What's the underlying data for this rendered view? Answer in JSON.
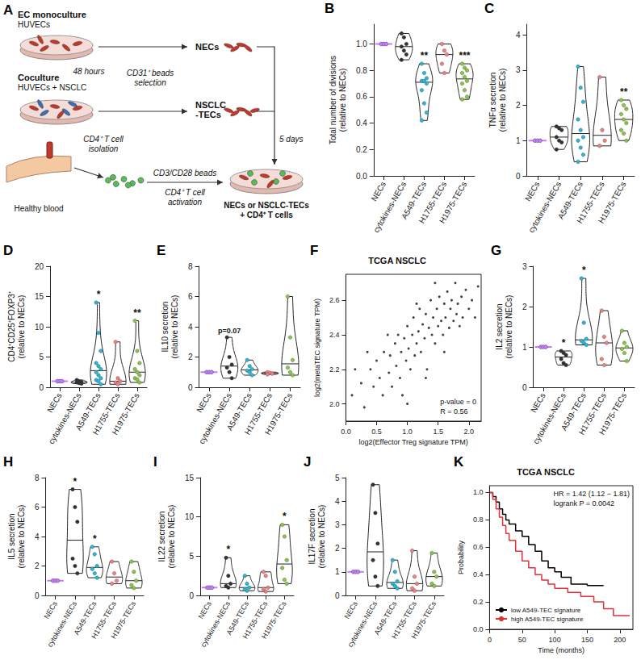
{
  "diagram": {
    "panel": "A",
    "labels": {
      "mono_title": "EC monoculture",
      "mono_sub": "HUVECs",
      "co_title": "Coculture",
      "co_sub": "HUVECs + NSCLC",
      "time1": "48 hours",
      "selection": "CD31⁺ beads selection",
      "nec": "NECs",
      "tec": "NSCLC -TECs",
      "time2": "5 days",
      "blood": "Healthy blood",
      "isolation": "CD4⁺ T cell isolation",
      "beads": "CD3/CD28 beads",
      "activation": "CD4⁺ T cell activation",
      "result": "NECs or NSCLC-TECs + CD4⁺ T cells"
    }
  },
  "chart_data": [
    {
      "panel": "B",
      "type": "violin",
      "ylabel": "Total number of divisions (relative to NECs)",
      "categories": [
        "NECs",
        "cytokines-NECs",
        "A549-TECs",
        "H1755-TECs",
        "H1975-TECs"
      ],
      "colors": [
        "#c77dff",
        "#333333",
        "#29b6d8",
        "#f08080",
        "#8bc34a"
      ],
      "points": [
        [
          1,
          1,
          1,
          1,
          1,
          1
        ],
        [
          1.08,
          1.05,
          1.0,
          0.98,
          0.95,
          0.92,
          0.88
        ],
        [
          0.85,
          0.78,
          0.74,
          0.72,
          0.72,
          0.7,
          0.65,
          0.55,
          0.48,
          0.42
        ],
        [
          1.0,
          0.95,
          0.92,
          0.85,
          0.78
        ],
        [
          0.85,
          0.82,
          0.8,
          0.78,
          0.75,
          0.72,
          0.7,
          0.65,
          0.6,
          0.58
        ]
      ],
      "ylim": [
        0,
        1.15
      ],
      "yticks": [
        {
          "value": 0,
          "label": "0.0"
        },
        {
          "value": 0.2,
          "label": "0.2"
        },
        {
          "value": 0.4,
          "label": "0.4"
        },
        {
          "value": 0.6,
          "label": "0.6"
        },
        {
          "value": 0.8,
          "label": "0.8"
        },
        {
          "value": 1,
          "label": "1.0"
        }
      ],
      "annotations": [
        {
          "category": "A549-TECs",
          "text": "**"
        },
        {
          "category": "H1975-TECs",
          "text": "***"
        }
      ]
    },
    {
      "panel": "C",
      "type": "violin",
      "ylabel": "TNFα secretion (relative to NECs)",
      "categories": [
        "NECs",
        "cytokines-NECs",
        "A549-TECs",
        "H1755-TECs",
        "H1975-TECs"
      ],
      "colors": [
        "#c77dff",
        "#333333",
        "#29b6d8",
        "#f08080",
        "#8bc34a"
      ],
      "points": [
        [
          1,
          1,
          1,
          1,
          1,
          1
        ],
        [
          1.4,
          1.35,
          1.3,
          1.1,
          1.0,
          0.95,
          0.75
        ],
        [
          3.1,
          2.5,
          2.1,
          1.6,
          1.3,
          1.1,
          1.0,
          0.8,
          0.6,
          0.4
        ],
        [
          2.8,
          1.3,
          1.0,
          0.85
        ],
        [
          2.15,
          2.0,
          1.9,
          1.75,
          1.6,
          1.5,
          1.3,
          1.2,
          1.0
        ]
      ],
      "ylim": [
        0,
        4.3
      ],
      "yticks": [
        0,
        1,
        2,
        3,
        4
      ],
      "annotations": [
        {
          "category": "H1975-TECs",
          "text": "**"
        }
      ]
    },
    {
      "panel": "D",
      "type": "violin",
      "ylabel": "CD4⁺CD25⁺FOXP3⁺ (relative to NECs)",
      "categories": [
        "NECs",
        "cytokines-NECs",
        "A549-TECs",
        "H1755-TECs",
        "H1975-TECs"
      ],
      "colors": [
        "#c77dff",
        "#333333",
        "#29b6d8",
        "#f08080",
        "#8bc34a"
      ],
      "points": [
        [
          1,
          1,
          1,
          1,
          1,
          1
        ],
        [
          1.2,
          1.0,
          0.9,
          0.8,
          0.7,
          0.6
        ],
        [
          14,
          9,
          6,
          4,
          3.5,
          3,
          2.5,
          2,
          1.5,
          1.2,
          1.0,
          0.5
        ],
        [
          7.5,
          1.5,
          1.0,
          0.8,
          0.5
        ],
        [
          11,
          6,
          4,
          3,
          2.5,
          2,
          1.5,
          1.3,
          0.8
        ]
      ],
      "ylim": [
        0,
        20
      ],
      "yticks": [
        0,
        5,
        10,
        15,
        20
      ],
      "annotations": [
        {
          "category": "A549-TECs",
          "text": "*"
        },
        {
          "category": "H1975-TECs",
          "text": "**"
        }
      ]
    },
    {
      "panel": "E",
      "type": "violin",
      "ylabel": "IL10 secretion (relative to NECs)",
      "categories": [
        "NECs",
        "cytokines-NECs",
        "A549-TECs",
        "H1755-TECs",
        "H1975-TECs"
      ],
      "colors": [
        "#c77dff",
        "#333333",
        "#29b6d8",
        "#f08080",
        "#8bc34a"
      ],
      "points": [
        [
          1,
          1,
          1,
          1,
          1,
          1
        ],
        [
          3.3,
          2.0,
          1.5,
          1.3,
          1.0,
          0.6
        ],
        [
          1.8,
          1.4,
          1.2,
          1.1,
          1.0,
          0.8
        ],
        [
          1.0,
          0.95,
          0.9,
          0.85
        ],
        [
          6.0,
          3.3,
          1.8,
          1.3,
          1.0,
          0.8
        ]
      ],
      "ylim": [
        0,
        8
      ],
      "yticks": [
        0,
        2,
        4,
        6,
        8
      ],
      "annotations": [
        {
          "category": "cytokines-NECs",
          "text": "p=0.07"
        }
      ]
    },
    {
      "panel": "F",
      "type": "scatter",
      "title": "TCGA NSCLC",
      "xlabel": "log2(Effector Treg signature TPM)",
      "ylabel": "log2(metaTEC signature TPM)",
      "color": "#111111",
      "x": [
        0.1,
        0.25,
        0.3,
        0.4,
        0.45,
        0.5,
        0.55,
        0.6,
        0.62,
        0.7,
        0.72,
        0.75,
        0.8,
        0.82,
        0.85,
        0.88,
        0.9,
        0.92,
        0.95,
        0.98,
        1.0,
        1.02,
        1.05,
        1.08,
        1.1,
        1.12,
        1.15,
        1.18,
        1.2,
        1.22,
        1.25,
        1.28,
        1.3,
        1.32,
        1.35,
        1.38,
        1.4,
        1.42,
        1.45,
        1.48,
        1.5,
        1.52,
        1.55,
        1.58,
        1.6,
        1.62,
        1.65,
        1.68,
        1.7,
        1.72,
        1.75,
        1.78,
        1.8,
        1.82,
        1.85,
        1.88,
        1.9,
        1.95,
        2.0,
        2.05,
        2.1,
        0.35,
        1.0,
        1.3,
        1.6,
        0.15,
        2.15,
        1.45,
        1.15,
        0.68
      ],
      "values": [
        2.05,
        2.12,
        1.98,
        2.2,
        2.1,
        2.25,
        2.15,
        2.05,
        2.3,
        2.18,
        2.28,
        2.1,
        2.35,
        2.22,
        2.4,
        2.15,
        2.3,
        2.05,
        2.38,
        2.25,
        2.45,
        2.32,
        2.2,
        2.4,
        2.5,
        2.28,
        2.35,
        2.42,
        2.55,
        2.3,
        2.46,
        2.38,
        2.52,
        2.2,
        2.44,
        2.6,
        2.4,
        2.5,
        2.35,
        2.55,
        2.45,
        2.62,
        2.48,
        2.4,
        2.58,
        2.5,
        2.65,
        2.44,
        2.55,
        2.6,
        2.48,
        2.7,
        2.52,
        2.58,
        2.45,
        2.62,
        2.5,
        2.66,
        2.55,
        2.6,
        2.5,
        2.3,
        2.0,
        2.15,
        2.3,
        2.2,
        2.68,
        2.7,
        2.58,
        2.4
      ],
      "xlim": [
        0,
        2.2
      ],
      "xticks": [
        {
          "value": 0,
          "label": "0.0"
        },
        {
          "value": 0.5,
          "label": "0.5"
        },
        {
          "value": 1,
          "label": "1.0"
        },
        {
          "value": 1.5,
          "label": "1.5"
        },
        {
          "value": 2,
          "label": "2.0"
        }
      ],
      "ylim": [
        1.9,
        2.75
      ],
      "yticks": [
        {
          "value": 2,
          "label": "2.0"
        },
        {
          "value": 2.2,
          "label": "2.2"
        },
        {
          "value": 2.4,
          "label": "2.4"
        },
        {
          "value": 2.6,
          "label": "2.6"
        }
      ],
      "annotations": [
        "p-value = 0",
        "R = 0.56"
      ]
    },
    {
      "panel": "G",
      "type": "violin",
      "ylabel": "IL2 secretion (relative to NECs)",
      "categories": [
        "NECs",
        "cytokines-NECs",
        "A549-TECs",
        "H1755-TECs",
        "H1975-TECs"
      ],
      "colors": [
        "#c77dff",
        "#333333",
        "#29b6d8",
        "#f08080",
        "#8bc34a"
      ],
      "points": [
        [
          1,
          1,
          1,
          1,
          1,
          1
        ],
        [
          0.9,
          0.85,
          0.8,
          0.7,
          0.6,
          0.55
        ],
        [
          2.7,
          1.6,
          1.2,
          1.15,
          1.1,
          1.05
        ],
        [
          1.9,
          1.25,
          1.1,
          0.7,
          0.55
        ],
        [
          1.4,
          1.1,
          1.0,
          0.95,
          0.85,
          0.65
        ]
      ],
      "ylim": [
        0,
        3
      ],
      "yticks": [
        0,
        1,
        2,
        3
      ],
      "annotations": [
        {
          "category": "cytokines-NECs",
          "text": "*"
        },
        {
          "category": "A549-TECs",
          "text": "*"
        }
      ]
    },
    {
      "panel": "H",
      "type": "violin",
      "ylabel": "IL5 secretion (relative to NECs)",
      "categories": [
        "NECs",
        "cytokines-NECs",
        "A549-TECs",
        "H1755-TECs",
        "H1975-TECs"
      ],
      "colors": [
        "#c77dff",
        "#333333",
        "#29b6d8",
        "#f08080",
        "#8bc34a"
      ],
      "points": [
        [
          1,
          1,
          1,
          1,
          1,
          1
        ],
        [
          7.2,
          6.0,
          5.0,
          2.5,
          2.0,
          1.5
        ],
        [
          3.3,
          2.8,
          2.0,
          1.8,
          1.5,
          1.2
        ],
        [
          2.3,
          1.5,
          1.0,
          0.8
        ],
        [
          2.3,
          1.6,
          1.0,
          0.7,
          0.5
        ]
      ],
      "ylim": [
        0,
        8
      ],
      "yticks": [
        0,
        2,
        4,
        6,
        8
      ],
      "annotations": [
        {
          "category": "cytokines-NECs",
          "text": "*"
        },
        {
          "category": "A549-TECs",
          "text": "*"
        }
      ]
    },
    {
      "panel": "I",
      "type": "violin",
      "ylabel": "IL22 secretion (relative to NECs)",
      "categories": [
        "NECs",
        "cytokines-NECs",
        "A549-TECs",
        "H1755-TECs",
        "H1975-TECs"
      ],
      "colors": [
        "#c77dff",
        "#333333",
        "#29b6d8",
        "#f08080",
        "#8bc34a"
      ],
      "points": [
        [
          1,
          1,
          1,
          1,
          1,
          1
        ],
        [
          4.8,
          2.5,
          1.5,
          1.2,
          1.0
        ],
        [
          2.5,
          1.5,
          1.0,
          0.8,
          0.6
        ],
        [
          3.0,
          2.5,
          1.0,
          0.8,
          0.5
        ],
        [
          9.0,
          7.5,
          4.5,
          3.5,
          2.0,
          1.5
        ]
      ],
      "ylim": [
        0,
        15
      ],
      "yticks": [
        0,
        5,
        10,
        15
      ],
      "annotations": [
        {
          "category": "cytokines-NECs",
          "text": "*"
        },
        {
          "category": "H1975-TECs",
          "text": "*"
        }
      ]
    },
    {
      "panel": "J",
      "type": "violin",
      "ylabel": "IL17F secretion (relative to NECs)",
      "categories": [
        "NECs",
        "cytokines-NECs",
        "A549-TECs",
        "H1755-TECs",
        "H1975-TECs"
      ],
      "colors": [
        "#c77dff",
        "#333333",
        "#29b6d8",
        "#f08080",
        "#8bc34a"
      ],
      "points": [
        [
          1,
          1,
          1,
          1,
          1,
          1
        ],
        [
          4.7,
          3.5,
          2.2,
          1.5,
          0.8,
          0.4
        ],
        [
          1.5,
          1.0,
          0.6,
          0.5,
          0.4,
          0.3
        ],
        [
          1.9,
          0.8,
          0.5,
          0.3,
          0.2
        ],
        [
          1.8,
          1.0,
          0.8,
          0.5,
          0.4
        ]
      ],
      "ylim": [
        0,
        5
      ],
      "yticks": [
        0,
        1,
        2,
        3,
        4,
        5
      ],
      "annotations": []
    },
    {
      "panel": "K",
      "type": "line",
      "title": "TCGA NSCLC",
      "line_style": "step",
      "xlabel": "Time (months)",
      "ylabel": "Probability",
      "legend": "bottom-left",
      "series": [
        {
          "name": "low A549-TEC signature",
          "color": "#000000",
          "x": [
            0,
            5,
            10,
            15,
            20,
            25,
            30,
            40,
            50,
            60,
            70,
            80,
            90,
            100,
            110,
            125,
            150,
            175
          ],
          "values": [
            1,
            0.97,
            0.93,
            0.88,
            0.84,
            0.8,
            0.77,
            0.72,
            0.68,
            0.62,
            0.57,
            0.5,
            0.45,
            0.42,
            0.38,
            0.33,
            0.32,
            0.32
          ]
        },
        {
          "name": "high A549-TEC signature",
          "color": "#e0303a",
          "x": [
            0,
            5,
            10,
            15,
            20,
            25,
            30,
            40,
            50,
            60,
            70,
            80,
            90,
            100,
            120,
            140,
            160,
            175,
            190,
            215
          ],
          "values": [
            1,
            0.95,
            0.88,
            0.82,
            0.76,
            0.7,
            0.65,
            0.57,
            0.5,
            0.45,
            0.4,
            0.36,
            0.33,
            0.3,
            0.27,
            0.24,
            0.2,
            0.15,
            0.1,
            0.1
          ]
        }
      ],
      "xlim": [
        0,
        220
      ],
      "xticks": [
        0,
        50,
        100,
        150,
        200
      ],
      "ylim": [
        0,
        1.05
      ],
      "yticks": [
        {
          "value": 0,
          "label": "0.0"
        },
        {
          "value": 0.2,
          "label": "0.2"
        },
        {
          "value": 0.4,
          "label": "0.4"
        },
        {
          "value": 0.6,
          "label": "0.6"
        },
        {
          "value": 0.8,
          "label": "0.8"
        },
        {
          "value": 1,
          "label": "1.0"
        }
      ],
      "annotations": [
        "HR = 1.42 (1.12 − 1.81)",
        "logrank P = 0.0042"
      ]
    }
  ]
}
